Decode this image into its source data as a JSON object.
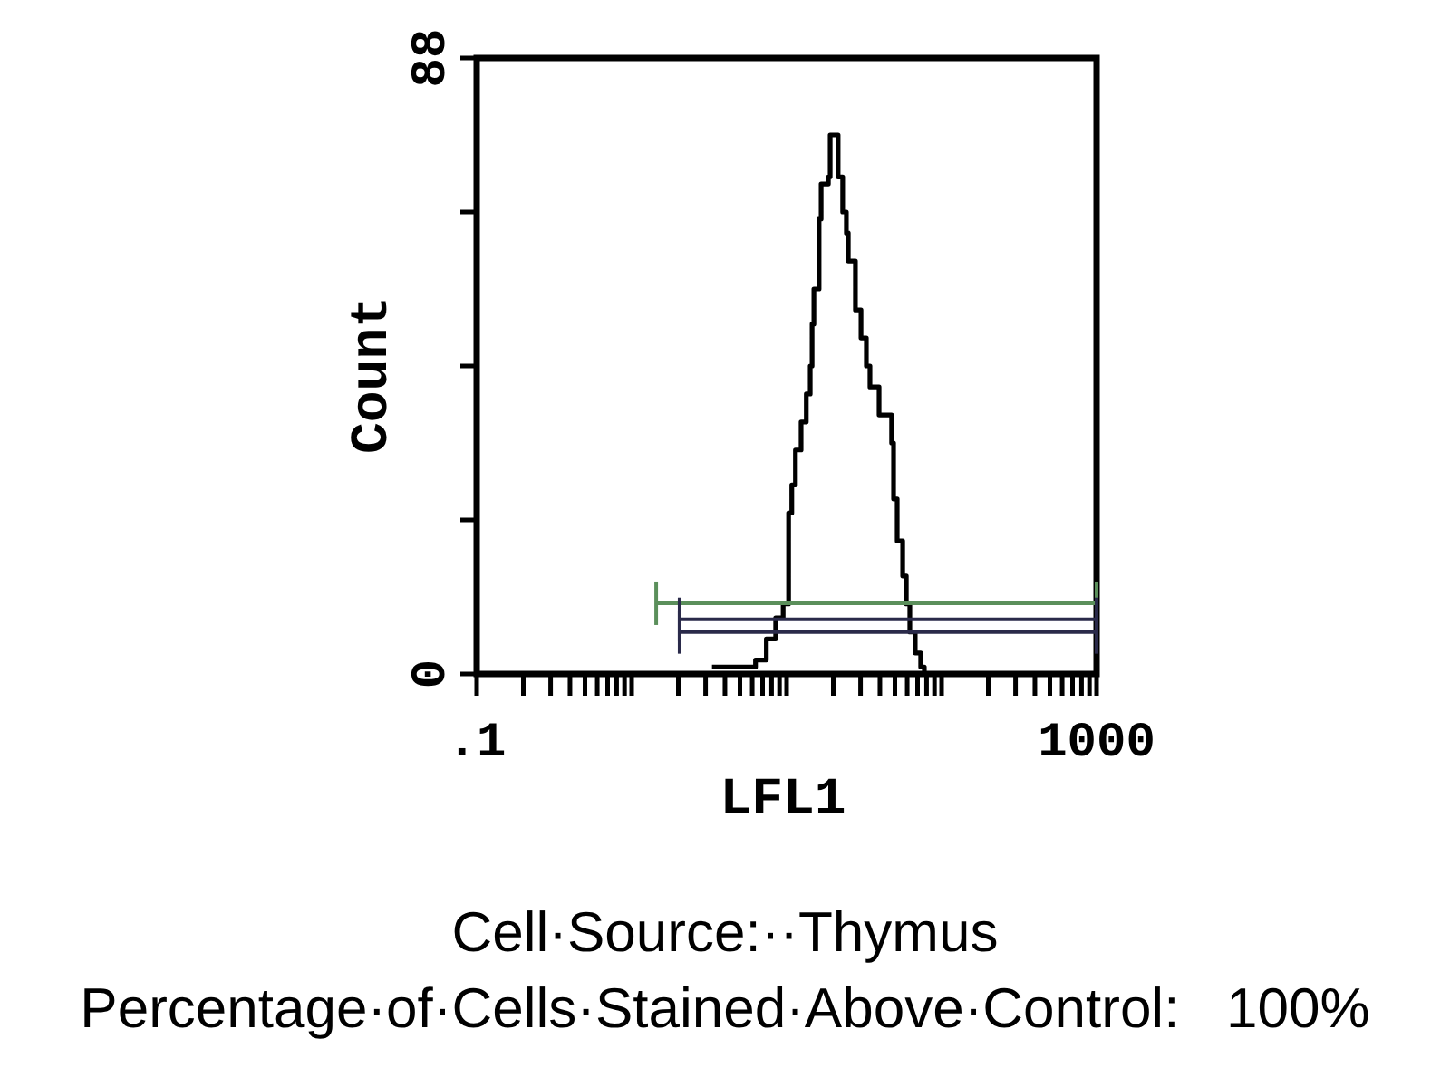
{
  "chart_data": {
    "type": "step",
    "xlabel": "LFL1",
    "ylabel": "Count",
    "log": "x",
    "xlim": [
      0.1,
      1000
    ],
    "ylim": [
      0,
      88
    ],
    "xticks": [
      {
        "value": 0.1,
        "label": ".1"
      },
      {
        "value": 0.2,
        "label": null
      },
      {
        "value": 0.3,
        "label": null
      },
      {
        "value": 0.4,
        "label": null
      },
      {
        "value": 0.5,
        "label": null
      },
      {
        "value": 0.6,
        "label": null
      },
      {
        "value": 0.7,
        "label": null
      },
      {
        "value": 0.8,
        "label": null
      },
      {
        "value": 0.9,
        "label": null
      },
      {
        "value": 1,
        "label": null
      },
      {
        "value": 2,
        "label": null
      },
      {
        "value": 3,
        "label": null
      },
      {
        "value": 4,
        "label": null
      },
      {
        "value": 5,
        "label": null
      },
      {
        "value": 6,
        "label": null
      },
      {
        "value": 7,
        "label": null
      },
      {
        "value": 8,
        "label": null
      },
      {
        "value": 9,
        "label": null
      },
      {
        "value": 10,
        "label": null
      },
      {
        "value": 20,
        "label": null
      },
      {
        "value": 30,
        "label": null
      },
      {
        "value": 40,
        "label": null
      },
      {
        "value": 50,
        "label": null
      },
      {
        "value": 60,
        "label": null
      },
      {
        "value": 70,
        "label": null
      },
      {
        "value": 80,
        "label": null
      },
      {
        "value": 90,
        "label": null
      },
      {
        "value": 100,
        "label": null
      },
      {
        "value": 200,
        "label": null
      },
      {
        "value": 300,
        "label": null
      },
      {
        "value": 400,
        "label": null
      },
      {
        "value": 500,
        "label": null
      },
      {
        "value": 600,
        "label": null
      },
      {
        "value": 700,
        "label": null
      },
      {
        "value": 800,
        "label": null
      },
      {
        "value": 900,
        "label": null
      },
      1000
    ],
    "yticks": [
      0,
      {
        "value": 22,
        "label": null
      },
      {
        "value": 44,
        "label": null
      },
      {
        "value": 66,
        "label": null
      },
      88
    ],
    "series": [
      {
        "color": "#000000",
        "x": [
          3.3,
          6.3,
          7.4,
          8.5,
          9.5,
          10.3,
          10.8,
          11.4,
          12.4,
          13.4,
          14.2,
          14.6,
          15.0,
          16.2,
          16.7,
          18.6,
          19.1,
          21.5,
          23.0,
          24.3,
          25.0,
          27.8,
          30.2,
          32.7,
          34.5,
          39.5,
          47.6,
          49.0,
          51.7,
          56.1,
          59.2,
          62.4,
          67.6,
          73.3,
          77.4
        ],
        "values": [
          1,
          2,
          5,
          8,
          10,
          23,
          27,
          32,
          36,
          40,
          44,
          50,
          55,
          65,
          70,
          71,
          77,
          71,
          66,
          63,
          59,
          52,
          48,
          44,
          41,
          37,
          33,
          25,
          19,
          14,
          10,
          6,
          3,
          1,
          0
        ]
      },
      {
        "type": "line",
        "color": "#5b8f5b",
        "x": [
          1.44,
          1000
        ],
        "values": [
          10.1,
          10.1
        ]
      },
      {
        "type": "line",
        "color": "#2a2a4a",
        "x": [
          2.04,
          1000
        ],
        "values": [
          7.8,
          7.8
        ]
      },
      {
        "type": "line",
        "color": "#2a2a4a",
        "x": [
          2.04,
          1000
        ],
        "values": [
          6.0,
          6.0
        ]
      }
    ],
    "annotations": [
      "Cell·Source:··Thymus",
      "Percentage·of·Cells·Stained·Above·Control:   100%"
    ]
  }
}
